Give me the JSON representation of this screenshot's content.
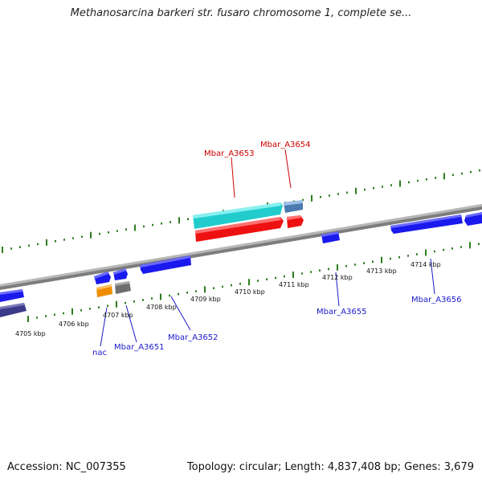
{
  "title": "Methanosarcina barkeri str. fusaro chromosome 1, complete se...",
  "footer": {
    "accession": "Accession: NC_007355",
    "stats": "Topology: circular; Length: 4,837,408 bp; Genes: 3,679"
  },
  "scale": {
    "unit": "kbp",
    "ticks": [
      {
        "label": "4705 kbp"
      },
      {
        "label": "4706 kbp"
      },
      {
        "label": "4707 kbp"
      },
      {
        "label": "4708 kbp"
      },
      {
        "label": "4709 kbp"
      },
      {
        "label": "4710 kbp"
      },
      {
        "label": "4711 kbp"
      },
      {
        "label": "4712 kbp"
      },
      {
        "label": "4713 kbp"
      },
      {
        "label": "4714 kbp"
      }
    ]
  },
  "gene_labels": {
    "nac": "nac",
    "a3651": "Mbar_A3651",
    "a3652": "Mbar_A3652",
    "a3653": "Mbar_A3653",
    "a3654": "Mbar_A3654",
    "a3655": "Mbar_A3655",
    "a3656": "Mbar_A3656"
  },
  "colors": {
    "backbone": "#8a8a8a",
    "tick": "#2e7d1f",
    "forward_gene": "#1a1aee",
    "forward_gene_dark": "#3b3b8a",
    "cyan_gene": "#22cccc",
    "red_gene": "#ee1111",
    "steel_gene": "#4a7ab0",
    "orange_gene": "#f08c00",
    "gray_gene": "#6e6e6e",
    "label_blue": "#1a1acc",
    "label_red": "#cc0000"
  }
}
